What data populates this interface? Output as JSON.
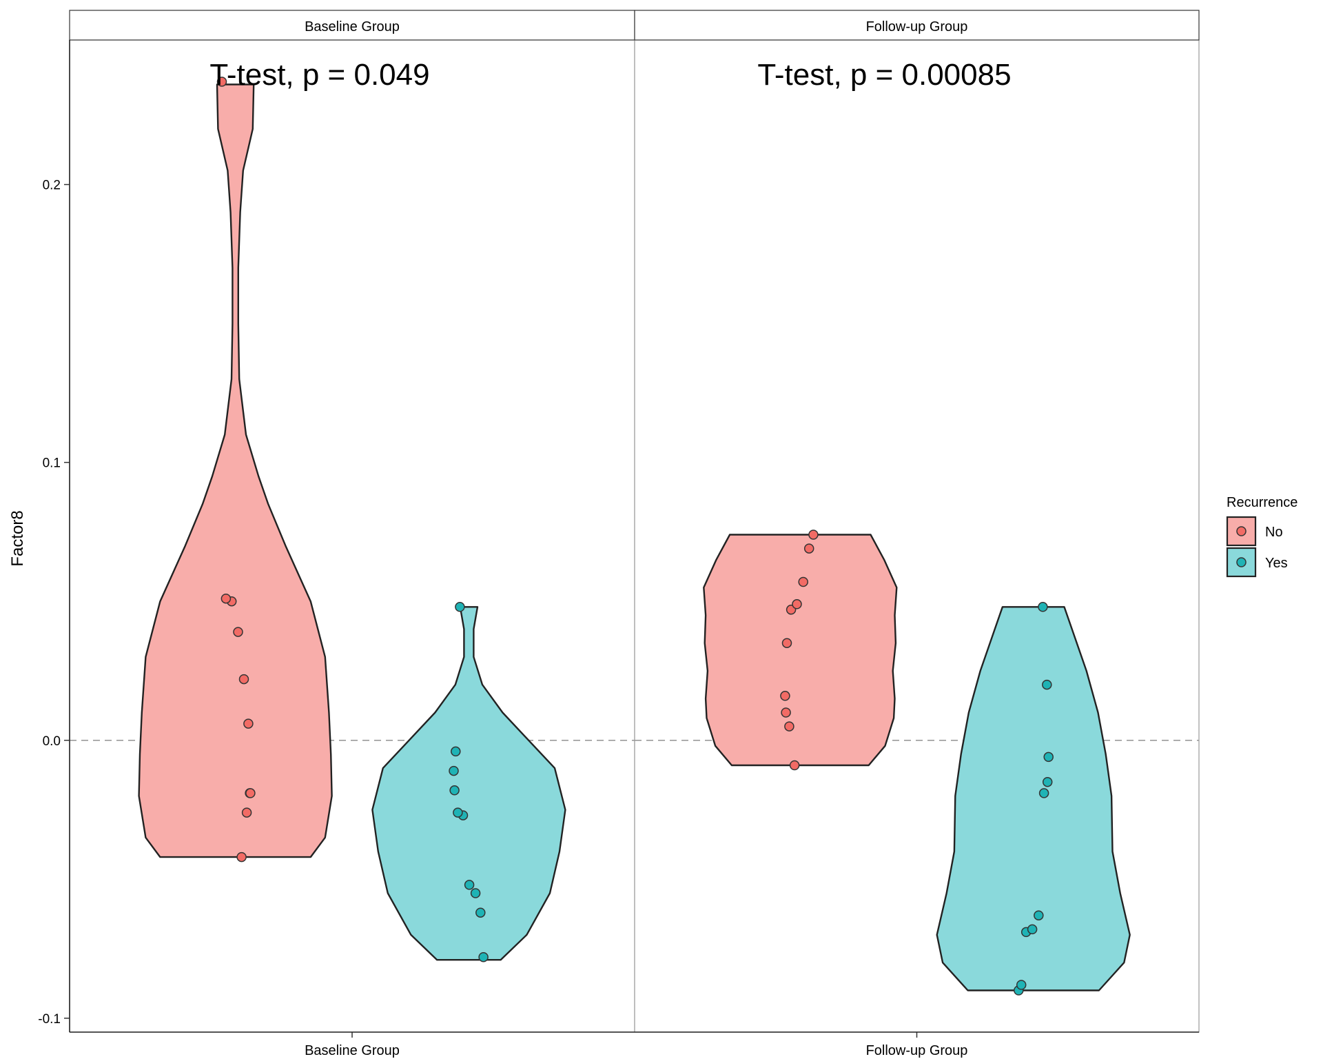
{
  "chart_data": {
    "type": "violin",
    "ylabel": "Factor8",
    "ylim": [
      -0.105,
      0.252
    ],
    "yticks": [
      {
        "value": -0.1,
        "label": "-0.1"
      },
      {
        "value": 0.0,
        "label": "0.0"
      },
      {
        "value": 0.1,
        "label": "0.1"
      },
      {
        "value": 0.2,
        "label": "0.2"
      }
    ],
    "reference_line": {
      "y": 0.0,
      "style": "dashed"
    },
    "legend": {
      "title": "Recurrence",
      "placement": "right",
      "entries": [
        {
          "label": "No",
          "fill": "#F8ADAA",
          "point": "#F26B65"
        },
        {
          "label": "Yes",
          "fill": "#8AD9DB",
          "point": "#1FB3B5"
        }
      ]
    },
    "panels": [
      {
        "strip_label": "Baseline Group",
        "x_tick_label": "Baseline Group",
        "annotation": "T-test, p = 0.049",
        "violins": [
          {
            "group": "No",
            "y_min": -0.042,
            "y_max": 0.236,
            "density": [
              [
                -0.042,
                0.78
              ],
              [
                -0.035,
                0.93
              ],
              [
                -0.02,
                1.0
              ],
              [
                -0.005,
                0.99
              ],
              [
                0.01,
                0.97
              ],
              [
                0.03,
                0.93
              ],
              [
                0.05,
                0.78
              ],
              [
                0.07,
                0.52
              ],
              [
                0.085,
                0.34
              ],
              [
                0.095,
                0.24
              ],
              [
                0.11,
                0.11
              ],
              [
                0.13,
                0.04
              ],
              [
                0.15,
                0.03
              ],
              [
                0.17,
                0.03
              ],
              [
                0.19,
                0.05
              ],
              [
                0.205,
                0.08
              ],
              [
                0.22,
                0.18
              ],
              [
                0.236,
                0.19
              ]
            ],
            "points": [
              -0.042,
              -0.026,
              -0.019,
              -0.019,
              0.006,
              0.022,
              0.039,
              0.05,
              0.051,
              0.237
            ]
          },
          {
            "group": "Yes",
            "y_min": -0.079,
            "y_max": 0.048,
            "density": [
              [
                -0.079,
                0.33
              ],
              [
                -0.07,
                0.6
              ],
              [
                -0.055,
                0.84
              ],
              [
                -0.04,
                0.94
              ],
              [
                -0.025,
                1.0
              ],
              [
                -0.01,
                0.89
              ],
              [
                0.0,
                0.62
              ],
              [
                0.01,
                0.35
              ],
              [
                0.02,
                0.14
              ],
              [
                0.03,
                0.05
              ],
              [
                0.04,
                0.05
              ],
              [
                0.048,
                0.09
              ]
            ],
            "points": [
              -0.078,
              -0.062,
              -0.055,
              -0.052,
              -0.027,
              -0.026,
              -0.018,
              -0.011,
              -0.004,
              0.048
            ]
          }
        ]
      },
      {
        "strip_label": "Follow-up Group",
        "x_tick_label": "Follow-up Group",
        "annotation": "T-test, p = 0.00085",
        "violins": [
          {
            "group": "No",
            "y_min": -0.009,
            "y_max": 0.074,
            "density": [
              [
                -0.009,
                0.71
              ],
              [
                -0.002,
                0.88
              ],
              [
                0.008,
                0.97
              ],
              [
                0.015,
                0.98
              ],
              [
                0.025,
                0.96
              ],
              [
                0.035,
                0.99
              ],
              [
                0.045,
                0.98
              ],
              [
                0.055,
                1.0
              ],
              [
                0.065,
                0.87
              ],
              [
                0.074,
                0.73
              ]
            ],
            "points": [
              -0.009,
              0.005,
              0.01,
              0.016,
              0.035,
              0.047,
              0.049,
              0.057,
              0.069,
              0.074
            ]
          },
          {
            "group": "Yes",
            "y_min": -0.09,
            "y_max": 0.048,
            "density": [
              [
                -0.09,
                0.68
              ],
              [
                -0.08,
                0.94
              ],
              [
                -0.07,
                1.0
              ],
              [
                -0.055,
                0.9
              ],
              [
                -0.04,
                0.82
              ],
              [
                -0.02,
                0.81
              ],
              [
                -0.005,
                0.75
              ],
              [
                0.01,
                0.67
              ],
              [
                0.025,
                0.55
              ],
              [
                0.04,
                0.4
              ],
              [
                0.048,
                0.32
              ]
            ],
            "points": [
              -0.09,
              -0.088,
              -0.069,
              -0.068,
              -0.063,
              -0.019,
              -0.015,
              -0.006,
              0.02,
              0.048
            ]
          }
        ]
      }
    ]
  }
}
